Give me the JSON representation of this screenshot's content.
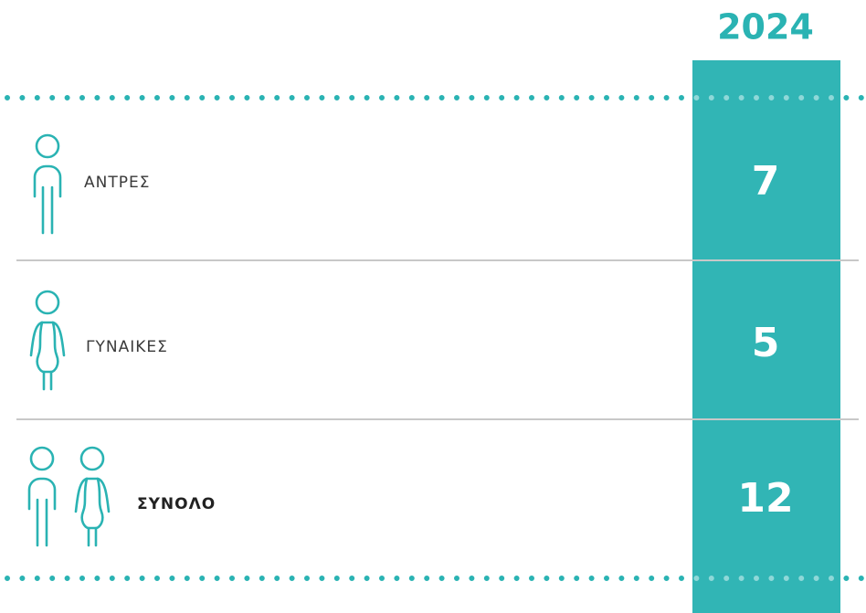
{
  "header": {
    "year": "2024"
  },
  "rows": [
    {
      "label": "ΑΝΤΡΕΣ",
      "value": 7
    },
    {
      "label": "ΓΥΝΑΙΚΕΣ",
      "value": 5
    },
    {
      "label": "ΣΥΝΟΛΟ",
      "value": 12
    }
  ]
}
